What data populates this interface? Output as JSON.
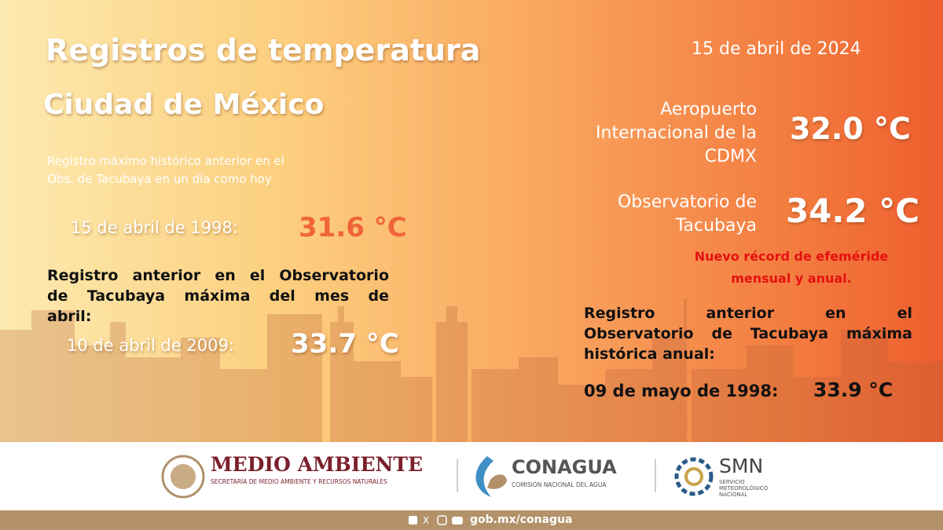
{
  "header": {
    "title": "Registros de temperatura",
    "subtitle": "Ciudad de México",
    "date": "15 de abril de 2024"
  },
  "left": {
    "note_lines": [
      "Registro máximo histórico anterior en el",
      "Obs. de Tacubaya en un día como hoy"
    ],
    "record_day": {
      "date": "15 de abril de 1998:",
      "value": "31.6 °C"
    },
    "month_lines": [
      "Registro anterior en el Observatorio",
      "de Tacubaya máxima del mes de",
      "abril:"
    ],
    "record_month": {
      "date": "10 de abril de 2009:",
      "value": "33.7 °C"
    }
  },
  "right": {
    "stations": [
      {
        "name_lines": [
          "Aeropuerto",
          "Internacional de la",
          "CDMX"
        ],
        "value": "32.0 °C"
      },
      {
        "name_lines": [
          "Observatorio de",
          "Tacubaya"
        ],
        "value": "34.2 °C"
      }
    ],
    "new_record_lines": [
      "Nuevo récord de efeméride",
      "mensual y anual."
    ],
    "annual_lines": [
      "Registro anterior en el",
      "Observatorio de Tacubaya máxima",
      "histórica anual:"
    ],
    "record_annual": {
      "date": "09 de mayo de 1998:",
      "value": "33.9 °C"
    }
  },
  "footer": {
    "semarnat": {
      "name": "MEDIO AMBIENTE",
      "desc": "SECRETARÍA DE MEDIO AMBIENTE Y RECURSOS NATURALES"
    },
    "conagua": {
      "name": "CONAGUA",
      "desc": "COMISIÓN NACIONAL DEL AGUA"
    },
    "smn": {
      "name": "SMN",
      "desc_lines": [
        "SERVICIO",
        "METEOROLÓGICO",
        "NACIONAL"
      ]
    },
    "url": "gob.mx/conagua"
  }
}
